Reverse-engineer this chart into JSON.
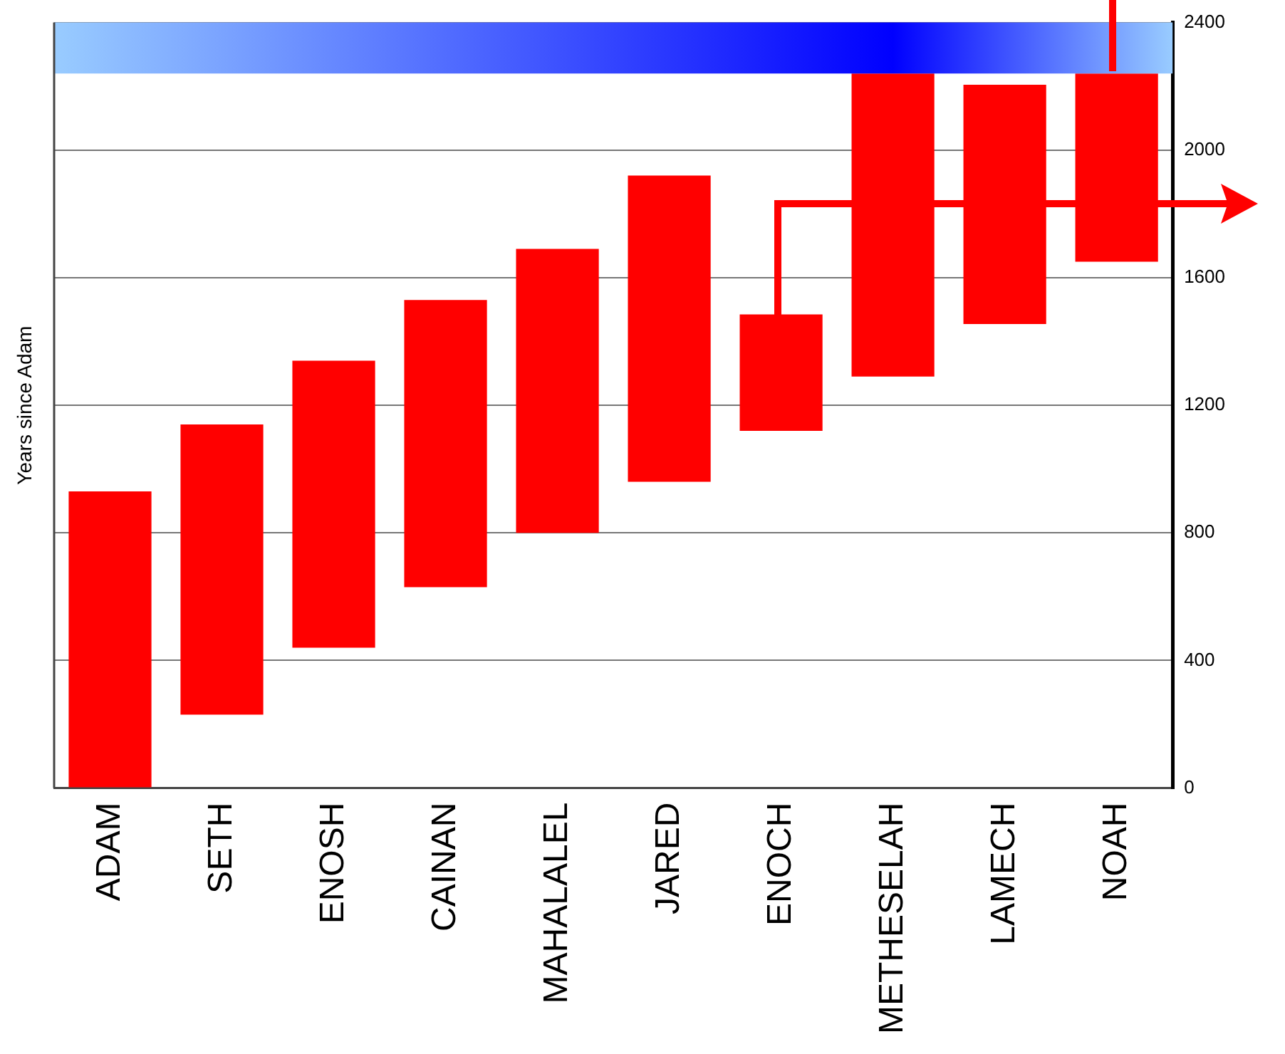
{
  "chart_data": {
    "type": "bar",
    "ylabel": "Years since Adam",
    "categories": [
      "ADAM",
      "SETH",
      "ENOSH",
      "CAINAN",
      "MAHALALEL",
      "JARED",
      "ENOCH",
      "METHESELAH",
      "LAMECH",
      "NOAH"
    ],
    "base": [
      0,
      230,
      440,
      630,
      800,
      960,
      1120,
      1290,
      1455,
      1650
    ],
    "values": [
      930,
      910,
      900,
      900,
      890,
      960,
      365,
      950,
      750,
      590
    ],
    "color": "#ff0000",
    "ylim": [
      0,
      2400
    ],
    "yticks": [
      0,
      400,
      800,
      1200,
      1600,
      2000,
      2400
    ],
    "grid": "y",
    "legend": false,
    "bands": [
      {
        "axis": "y",
        "from": 2240,
        "to": 2400,
        "color": "#0000ff"
      }
    ]
  }
}
